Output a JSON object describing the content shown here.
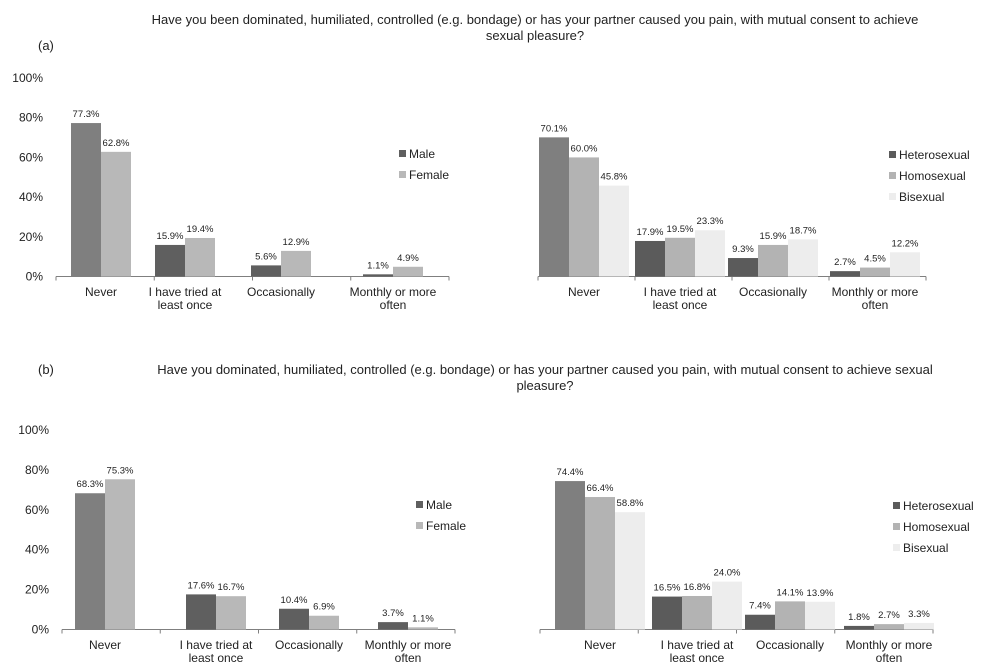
{
  "colors": {
    "male": "#5f5f5f",
    "female": "#b8b8b8",
    "heterosexual": "#5b5b5b",
    "homosexual": "#b3b3b3",
    "bisexual": "#ededed",
    "never_first_bar": "#7f7f7f",
    "axis": "#7f7f7f"
  },
  "panels": [
    {
      "label": "(a)",
      "title": "Have you been dominated, humiliated, controlled (e.g. bondage) or has your partner caused you pain, with mutual consent to achieve sexual pleasure?"
    },
    {
      "label": "(b)",
      "title": "Have you dominated, humiliated, controlled (e.g. bondage) or has your partner caused you pain, with mutual consent to achieve sexual pleasure?"
    }
  ],
  "chart_data": [
    {
      "type": "bar",
      "panel": "a",
      "categories": [
        "Never",
        "I have tried at least once",
        "Occasionally",
        "Monthly or more often"
      ],
      "ylim": [
        0,
        100
      ],
      "yticks": [
        "0%",
        "20%",
        "40%",
        "60%",
        "80%",
        "100%"
      ],
      "grid": false,
      "groups": [
        {
          "legend_placement": "right of group",
          "series": [
            {
              "name": "Male",
              "values": [
                77.3,
                15.9,
                5.6,
                1.1
              ],
              "labels": [
                "77.3%",
                "15.9%",
                "5.6%",
                "1.1%"
              ]
            },
            {
              "name": "Female",
              "values": [
                62.8,
                19.4,
                12.9,
                4.9
              ],
              "labels": [
                "62.8%",
                "19.4%",
                "12.9%",
                "4.9%"
              ]
            }
          ]
        },
        {
          "legend_placement": "right of group",
          "series": [
            {
              "name": "Heterosexual",
              "values": [
                70.1,
                17.9,
                9.3,
                2.7
              ],
              "labels": [
                "70.1%",
                "17.9%",
                "9.3%",
                "2.7%"
              ]
            },
            {
              "name": "Homosexual",
              "values": [
                60.0,
                19.5,
                15.9,
                4.5
              ],
              "labels": [
                "60.0%",
                "19.5%",
                "15.9%",
                "4.5%"
              ]
            },
            {
              "name": "Bisexual",
              "values": [
                45.8,
                23.3,
                18.7,
                12.2
              ],
              "labels": [
                "45.8%",
                "23.3%",
                "18.7%",
                "12.2%"
              ]
            }
          ]
        }
      ]
    },
    {
      "type": "bar",
      "panel": "b",
      "categories": [
        "Never",
        "I have tried at least once",
        "Occasionally",
        "Monthly or more often"
      ],
      "ylim": [
        0,
        100
      ],
      "yticks": [
        "0%",
        "20%",
        "40%",
        "60%",
        "80%",
        "100%"
      ],
      "grid": false,
      "groups": [
        {
          "legend_placement": "right of group",
          "series": [
            {
              "name": "Male",
              "values": [
                68.3,
                17.6,
                10.4,
                3.7
              ],
              "labels": [
                "68.3%",
                "17.6%",
                "10.4%",
                "3.7%"
              ]
            },
            {
              "name": "Female",
              "values": [
                75.3,
                16.7,
                6.9,
                1.1
              ],
              "labels": [
                "75.3%",
                "16.7%",
                "6.9%",
                "1.1%"
              ]
            }
          ]
        },
        {
          "legend_placement": "right of group",
          "series": [
            {
              "name": "Heterosexual",
              "values": [
                74.4,
                16.5,
                7.4,
                1.8
              ],
              "labels": [
                "74.4%",
                "16.5%",
                "7.4%",
                "1.8%"
              ]
            },
            {
              "name": "Homosexual",
              "values": [
                66.4,
                16.8,
                14.1,
                2.7
              ],
              "labels": [
                "66.4%",
                "16.8%",
                "14.1%",
                "2.7%"
              ]
            },
            {
              "name": "Bisexual",
              "values": [
                58.8,
                24.0,
                13.9,
                3.3
              ],
              "labels": [
                "58.8%",
                "24.0%",
                "13.9%",
                "3.3%"
              ]
            }
          ]
        }
      ]
    }
  ]
}
